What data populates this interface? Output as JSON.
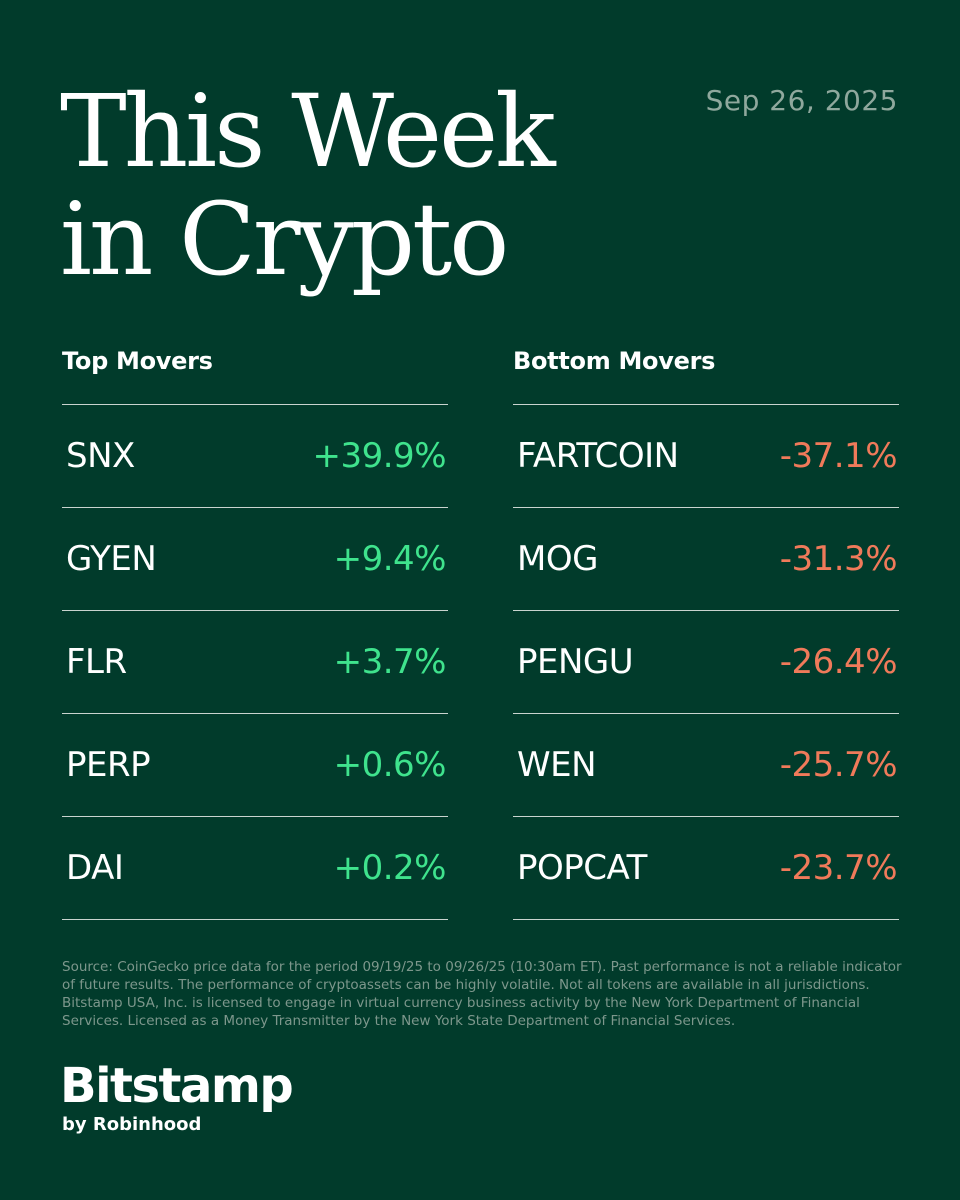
{
  "title": {
    "line1": "This Week",
    "line2": "in Crypto"
  },
  "date": "Sep 26, 2025",
  "top_movers": {
    "heading": "Top Movers",
    "items": [
      {
        "symbol": "SNX",
        "change": "+39.9%"
      },
      {
        "symbol": "GYEN",
        "change": "+9.4%"
      },
      {
        "symbol": "FLR",
        "change": "+3.7%"
      },
      {
        "symbol": "PERP",
        "change": "+0.6%"
      },
      {
        "symbol": "DAI",
        "change": "+0.2%"
      }
    ]
  },
  "bottom_movers": {
    "heading": "Bottom Movers",
    "items": [
      {
        "symbol": "FARTCOIN",
        "change": "-37.1%"
      },
      {
        "symbol": "MOG",
        "change": "-31.3%"
      },
      {
        "symbol": "PENGU",
        "change": "-26.4%"
      },
      {
        "symbol": "WEN",
        "change": "-25.7%"
      },
      {
        "symbol": "POPCAT",
        "change": "-23.7%"
      }
    ]
  },
  "disclaimer": "Source: CoinGecko price data for the period 09/19/25 to 09/26/25 (10:30am ET). Past performance is not a reliable indicator of future results. The performance of cryptoassets can be highly volatile. Not all tokens are available in all jurisdictions. Bitstamp USA, Inc. is licensed to engage in virtual currency business activity by the New York Department of Financial Services. Licensed as a Money Transmitter by the New York State Department of Financial Services.",
  "brand": {
    "name": "Bitstamp",
    "tagline": "by Robinhood"
  },
  "colors": {
    "background": "#013b2b",
    "positive": "#3fe38d",
    "negative": "#f07a5a",
    "muted": "#8fa89d"
  }
}
